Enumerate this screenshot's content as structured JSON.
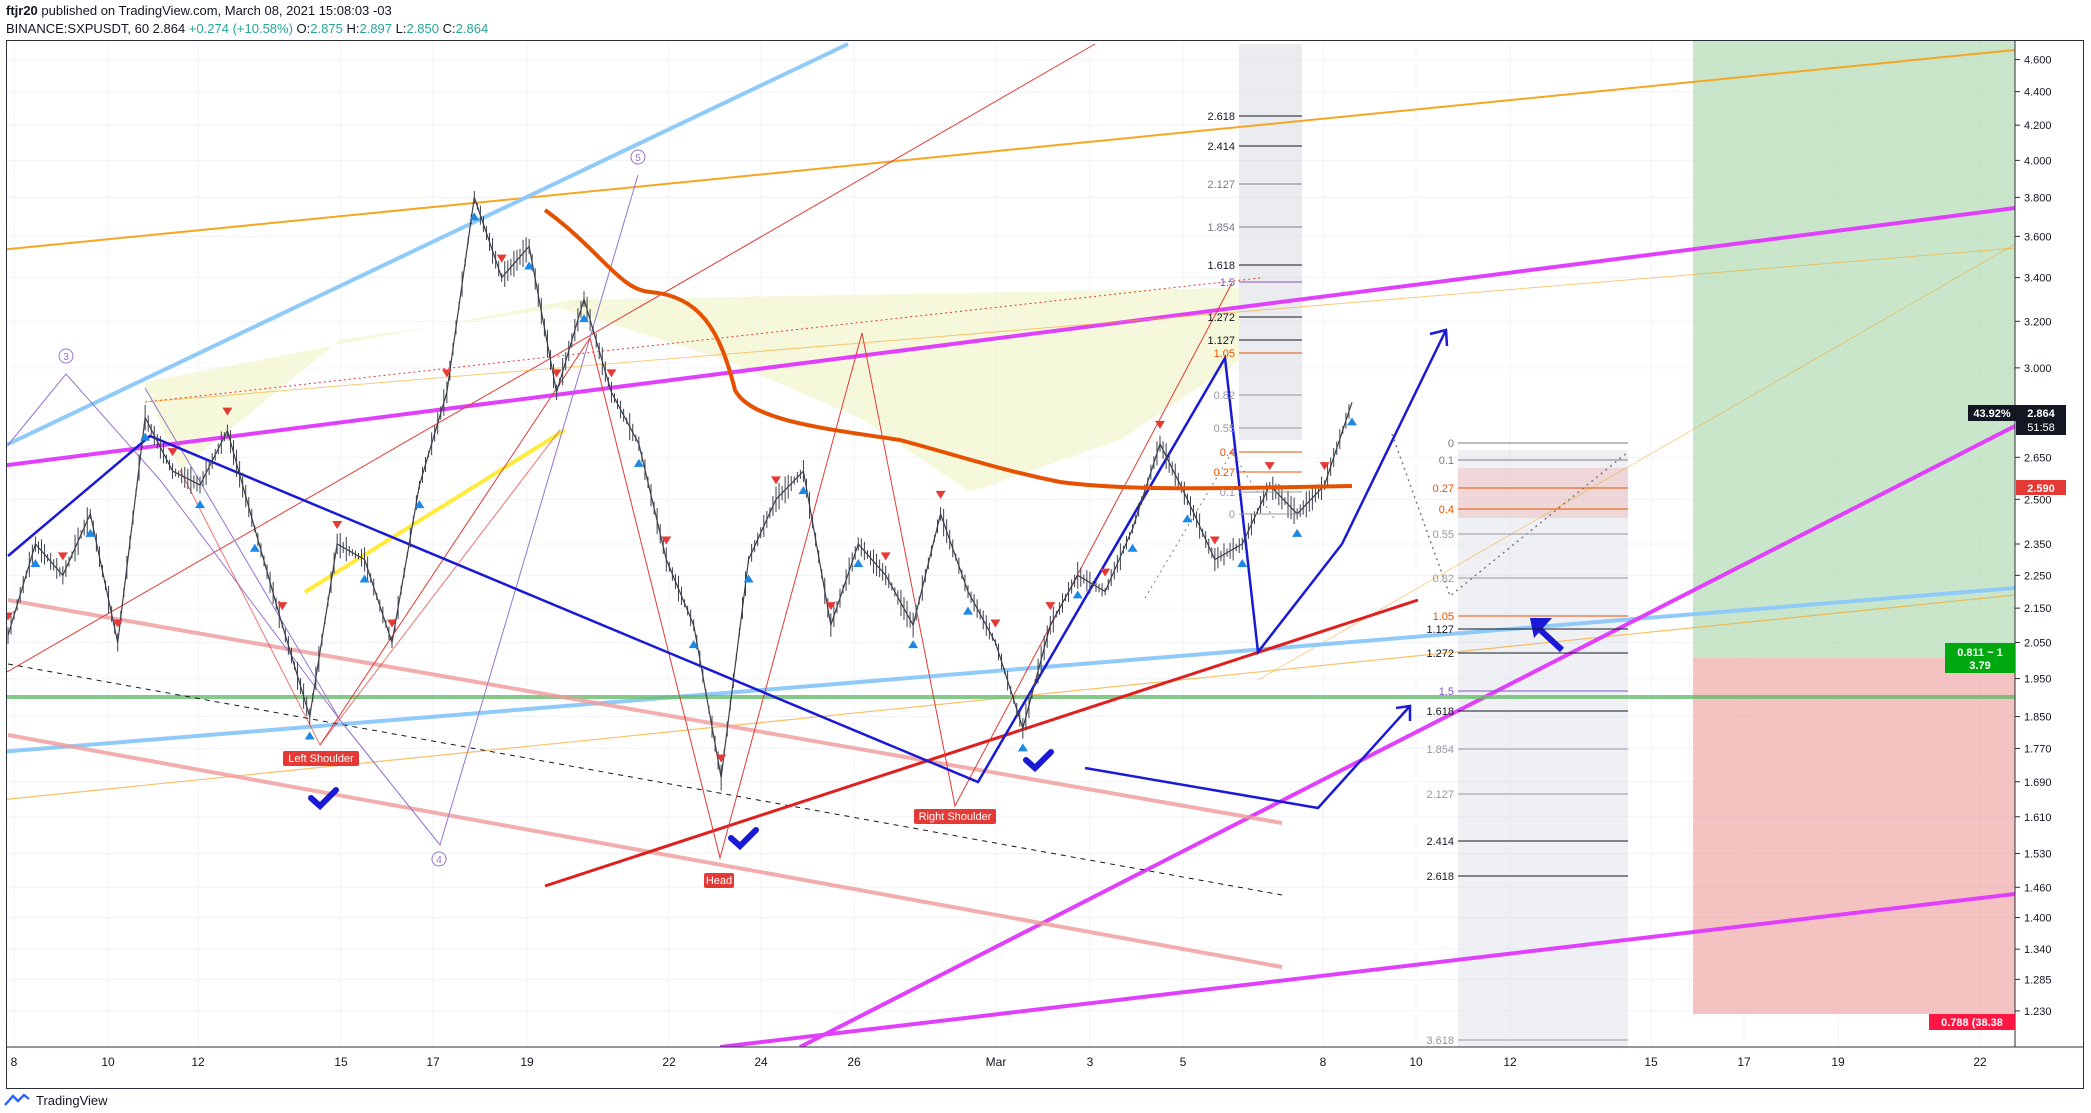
{
  "header": {
    "user": "ftjr20",
    "published": "published on TradingView.com, March 08, 2021 15:08:03 -03",
    "symbol": "BINANCE:SXPUSDT, 60",
    "last": "2.864",
    "change": "+0.274 (+10.58%)",
    "o_label": "O:",
    "o": "2.875",
    "h_label": "H:",
    "h": "2.897",
    "l_label": "L:",
    "l": "2.850",
    "c_label": "C:",
    "c": "2.864"
  },
  "footer": {
    "brand": "TradingView"
  },
  "colors": {
    "up": "#26a69a",
    "down": "#ef5350",
    "magenta": "#e040fb",
    "orange": "#e65100",
    "blue": "#1a1ad6",
    "lightblue": "#90caf9",
    "green": "#66bb6a",
    "red": "#e01f1f"
  },
  "chart_data": {
    "type": "line",
    "title": "",
    "xlabel": "",
    "ylabel": "",
    "y_scale": "log",
    "ylim": [
      1.17,
      4.72
    ],
    "grid": true,
    "y_ticks": [
      "4.600",
      "4.400",
      "4.200",
      "4.000",
      "3.800",
      "3.600",
      "3.400",
      "3.200",
      "3.000",
      "2.650",
      "2.500",
      "2.350",
      "2.250",
      "2.150",
      "2.050",
      "1.950",
      "1.850",
      "1.770",
      "1.690",
      "1.610",
      "1.530",
      "1.460",
      "1.400",
      "1.340",
      "1.285",
      "1.230"
    ],
    "x_ticks": [
      "8",
      "10",
      "12",
      "15",
      "17",
      "19",
      "22",
      "24",
      "26",
      "Mar",
      "3",
      "5",
      "8",
      "10",
      "12",
      "15",
      "17",
      "19",
      "22"
    ],
    "price_tags": [
      {
        "text": "43.92%",
        "style": "dark"
      },
      {
        "text": "2.864",
        "style": "dark"
      },
      {
        "text": "51:58",
        "style": "dark"
      },
      {
        "text": "2.590",
        "style": "red"
      },
      {
        "text": "0.811 ~ 1",
        "style": "green"
      },
      {
        "text": "3.79",
        "style": "green"
      },
      {
        "text": "0.788 (38.38",
        "style": "red"
      }
    ],
    "annotations": [
      "Left Shoulder",
      "Head",
      "Right Shoulder"
    ],
    "wave_labels": [
      "3",
      "5",
      "4"
    ],
    "fib_upper_levels": [
      "2.618",
      "2.414",
      "2.127",
      "1.854",
      "1.618",
      "1.5",
      "1.272",
      "1.127",
      "1.05",
      "0.82",
      "0.55",
      "0.4",
      "0.27",
      "0.1",
      "0"
    ],
    "fib_lower_levels": [
      "0",
      "0.1",
      "0.27",
      "0.4",
      "0.55",
      "0.82",
      "1.05",
      "1.127",
      "1.272",
      "1.5",
      "1.618",
      "1.854",
      "2.127",
      "2.414",
      "2.618",
      "3.618"
    ],
    "series": [
      {
        "name": "",
        "values": [
          2.07,
          2.35,
          2.25,
          2.45,
          2.05,
          2.8,
          2.6,
          2.55,
          2.75,
          2.4,
          2.1,
          1.85,
          2.35,
          2.3,
          2.05,
          2.55,
          2.9,
          3.8,
          3.4,
          3.55,
          2.9,
          3.3,
          2.9,
          2.7,
          2.3,
          2.1,
          1.7,
          2.3,
          2.5,
          2.6,
          2.1,
          2.35,
          2.25,
          2.1,
          2.45,
          2.2,
          2.05,
          1.82,
          2.1,
          2.25,
          2.2,
          2.4,
          2.7,
          2.5,
          2.3,
          2.35,
          2.55,
          2.45,
          2.55,
          2.86
        ]
      }
    ]
  }
}
